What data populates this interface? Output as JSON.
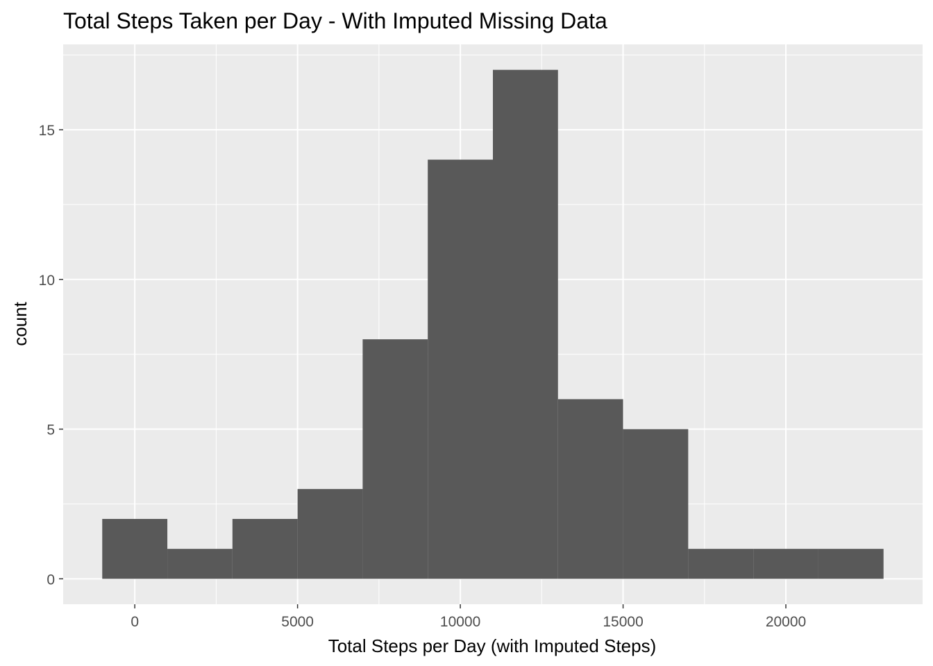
{
  "chart_data": {
    "type": "bar",
    "title": "Total Steps Taken per Day - With Imputed Missing Data",
    "xlabel": "Total Steps per Day (with Imputed Steps)",
    "ylabel": "count",
    "bin_width": 2000,
    "bins": [
      {
        "x0": -1000,
        "x1": 1000,
        "count": 2
      },
      {
        "x0": 1000,
        "x1": 3000,
        "count": 1
      },
      {
        "x0": 3000,
        "x1": 5000,
        "count": 2
      },
      {
        "x0": 5000,
        "x1": 7000,
        "count": 3
      },
      {
        "x0": 7000,
        "x1": 9000,
        "count": 8
      },
      {
        "x0": 9000,
        "x1": 11000,
        "count": 14
      },
      {
        "x0": 11000,
        "x1": 13000,
        "count": 17
      },
      {
        "x0": 13000,
        "x1": 15000,
        "count": 6
      },
      {
        "x0": 15000,
        "x1": 17000,
        "count": 5
      },
      {
        "x0": 17000,
        "x1": 19000,
        "count": 1
      },
      {
        "x0": 19000,
        "x1": 21000,
        "count": 1
      },
      {
        "x0": 21000,
        "x1": 23000,
        "count": 1
      }
    ],
    "xlim": [
      -2200,
      24200
    ],
    "ylim": [
      -0.85,
      17.85
    ],
    "x_ticks": [
      0,
      5000,
      10000,
      15000,
      20000
    ],
    "x_tick_labels": [
      "0",
      "5000",
      "10000",
      "15000",
      "20000"
    ],
    "y_ticks": [
      0,
      5,
      10,
      15
    ],
    "y_tick_labels": [
      "0",
      "5",
      "10",
      "15"
    ],
    "grid": true,
    "legend": "none",
    "colors": {
      "panel": "#ebebeb",
      "grid": "#ffffff",
      "bar": "#595959",
      "tick_text": "#4d4d4d",
      "tick_mark": "#333333"
    }
  }
}
